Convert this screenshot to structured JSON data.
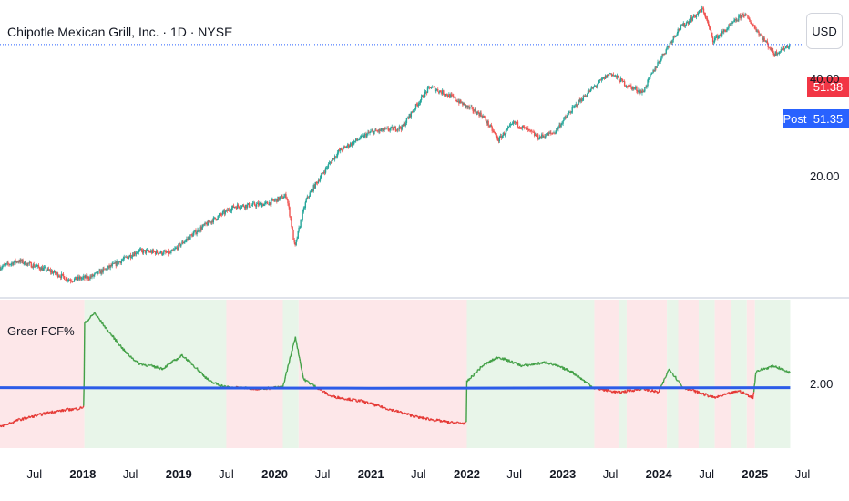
{
  "header": {
    "title": "Chipotle Mexican Grill, Inc. · 1D · NYSE",
    "currency_button": "USD"
  },
  "price_tags": {
    "last": "51.38",
    "post_label": "Post",
    "post_value": "51.35",
    "last_color": "#f23645",
    "post_color": "#2962ff"
  },
  "indicator": {
    "label": "Greer FCF%"
  },
  "colors": {
    "up": "#26a69a",
    "down": "#ef5350",
    "fcf_above": "#43a047",
    "fcf_below": "#e53935",
    "avg_line": "#2c5ce8",
    "bg_green": "#e8f5e9",
    "bg_red": "#fde7e9"
  },
  "chart_data": [
    {
      "type": "candlestick",
      "title": "Chipotle Mexican Grill, Inc. · 1D · NYSE",
      "y_scale": "log",
      "y_ticks": [
        "40.00",
        "20.00"
      ],
      "y_tick_values": [
        40,
        20
      ],
      "ylim": [
        8.5,
        67
      ],
      "x_ticks": [
        "Jul",
        "2018",
        "Jul",
        "2019",
        "Jul",
        "2020",
        "Jul",
        "2021",
        "Jul",
        "2022",
        "Jul",
        "2023",
        "Jul",
        "2024",
        "Jul",
        "2025",
        "Jul"
      ],
      "x_tick_dates": [
        "2017-07-01",
        "2018-01-01",
        "2018-07-01",
        "2019-01-01",
        "2019-07-01",
        "2020-01-01",
        "2020-07-01",
        "2021-01-01",
        "2021-07-01",
        "2022-01-01",
        "2022-07-01",
        "2023-01-01",
        "2023-07-01",
        "2024-01-01",
        "2024-07-01",
        "2025-01-01",
        "2025-07-01"
      ],
      "x_tick_bold": [
        false,
        true,
        false,
        true,
        false,
        true,
        false,
        true,
        false,
        true,
        false,
        true,
        false,
        true,
        false,
        true,
        false
      ],
      "xlim": [
        "2017-02-20",
        "2025-07-01"
      ],
      "last_price": 51.38,
      "post_price": 51.35,
      "price_path": [
        [
          "2017-02-20",
          10.5
        ],
        [
          "2017-05-01",
          11.0
        ],
        [
          "2017-09-01",
          10.2
        ],
        [
          "2017-11-15",
          9.6
        ],
        [
          "2018-02-01",
          9.8
        ],
        [
          "2018-05-01",
          10.7
        ],
        [
          "2018-08-01",
          11.8
        ],
        [
          "2018-12-01",
          11.6
        ],
        [
          "2019-04-01",
          14.0
        ],
        [
          "2019-08-01",
          16.2
        ],
        [
          "2019-12-01",
          16.5
        ],
        [
          "2020-02-15",
          17.5
        ],
        [
          "2020-03-18",
          12.0
        ],
        [
          "2020-05-01",
          17.0
        ],
        [
          "2020-09-01",
          24.0
        ],
        [
          "2021-01-01",
          27.5
        ],
        [
          "2021-05-01",
          28.5
        ],
        [
          "2021-08-15",
          38.0
        ],
        [
          "2021-11-01",
          35.5
        ],
        [
          "2022-01-01",
          33.0
        ],
        [
          "2022-03-01",
          31.0
        ],
        [
          "2022-05-01",
          26.0
        ],
        [
          "2022-07-01",
          29.5
        ],
        [
          "2022-10-01",
          26.5
        ],
        [
          "2022-12-01",
          27.5
        ],
        [
          "2023-03-01",
          34.0
        ],
        [
          "2023-07-01",
          42.0
        ],
        [
          "2023-09-01",
          38.5
        ],
        [
          "2023-11-01",
          36.5
        ],
        [
          "2024-02-01",
          50.0
        ],
        [
          "2024-03-15",
          57.0
        ],
        [
          "2024-06-18",
          66.0
        ],
        [
          "2024-07-25",
          53.0
        ],
        [
          "2024-09-01",
          56.0
        ],
        [
          "2024-11-20",
          64.0
        ],
        [
          "2025-01-15",
          56.0
        ],
        [
          "2025-03-15",
          48.0
        ],
        [
          "2025-05-15",
          51.4
        ]
      ]
    },
    {
      "type": "line",
      "title": "Greer FCF%",
      "y_ticks": [
        "2.00"
      ],
      "y_tick_values": [
        2.0
      ],
      "ylim": [
        0.8,
        3.6
      ],
      "xlim": [
        "2017-02-20",
        "2025-07-01"
      ],
      "series": [
        {
          "name": "Greer FCF%",
          "points": [
            [
              "2017-02-20",
              1.2
            ],
            [
              "2017-05-01",
              1.33
            ],
            [
              "2017-09-01",
              1.48
            ],
            [
              "2017-12-20",
              1.55
            ],
            [
              "2018-01-05",
              1.58
            ],
            [
              "2018-01-08",
              3.15
            ],
            [
              "2018-02-15",
              3.35
            ],
            [
              "2018-04-01",
              3.05
            ],
            [
              "2018-06-15",
              2.6
            ],
            [
              "2018-08-01",
              2.4
            ],
            [
              "2018-11-01",
              2.3
            ],
            [
              "2019-01-15",
              2.55
            ],
            [
              "2019-03-01",
              2.35
            ],
            [
              "2019-05-01",
              2.05
            ],
            [
              "2019-07-01",
              1.95
            ],
            [
              "2019-11-01",
              1.92
            ],
            [
              "2020-02-01",
              1.95
            ],
            [
              "2020-03-20",
              2.9
            ],
            [
              "2020-04-20",
              2.1
            ],
            [
              "2020-08-01",
              1.78
            ],
            [
              "2020-12-01",
              1.68
            ],
            [
              "2021-03-01",
              1.55
            ],
            [
              "2021-07-01",
              1.38
            ],
            [
              "2021-11-01",
              1.28
            ],
            [
              "2021-12-31",
              1.27
            ],
            [
              "2022-01-01",
              2.05
            ],
            [
              "2022-03-01",
              2.35
            ],
            [
              "2022-05-01",
              2.52
            ],
            [
              "2022-08-01",
              2.35
            ],
            [
              "2022-11-01",
              2.42
            ],
            [
              "2023-02-01",
              2.25
            ],
            [
              "2023-05-01",
              1.93
            ],
            [
              "2023-08-01",
              1.85
            ],
            [
              "2023-11-01",
              1.92
            ],
            [
              "2024-01-01",
              1.85
            ],
            [
              "2024-02-10",
              2.3
            ],
            [
              "2024-04-01",
              1.95
            ],
            [
              "2024-08-01",
              1.75
            ],
            [
              "2024-11-01",
              1.88
            ],
            [
              "2024-12-25",
              1.75
            ],
            [
              "2025-01-05",
              2.25
            ],
            [
              "2025-03-15",
              2.35
            ],
            [
              "2025-05-15",
              2.22
            ]
          ]
        },
        {
          "name": "average",
          "points": [
            [
              "2017-02-20",
              1.94
            ],
            [
              "2021-01-01",
              1.93
            ],
            [
              "2025-05-15",
              1.94
            ]
          ]
        }
      ],
      "background_regions": [
        [
          "2017-02-20",
          "2018-01-07",
          "red"
        ],
        [
          "2018-01-07",
          "2019-07-01",
          "green"
        ],
        [
          "2019-07-01",
          "2020-02-01",
          "red"
        ],
        [
          "2020-02-01",
          "2020-04-01",
          "green"
        ],
        [
          "2020-04-01",
          "2022-01-01",
          "red"
        ],
        [
          "2022-01-01",
          "2023-05-01",
          "green"
        ],
        [
          "2023-05-01",
          "2023-08-01",
          "red"
        ],
        [
          "2023-08-01",
          "2023-09-01",
          "green"
        ],
        [
          "2023-09-01",
          "2024-02-01",
          "red"
        ],
        [
          "2024-02-01",
          "2024-03-15",
          "green"
        ],
        [
          "2024-03-15",
          "2024-06-01",
          "red"
        ],
        [
          "2024-06-01",
          "2024-08-01",
          "green"
        ],
        [
          "2024-08-01",
          "2024-10-01",
          "red"
        ],
        [
          "2024-10-01",
          "2024-12-01",
          "green"
        ],
        [
          "2024-12-01",
          "2025-01-01",
          "red"
        ],
        [
          "2025-01-01",
          "2025-05-15",
          "green"
        ]
      ]
    }
  ]
}
